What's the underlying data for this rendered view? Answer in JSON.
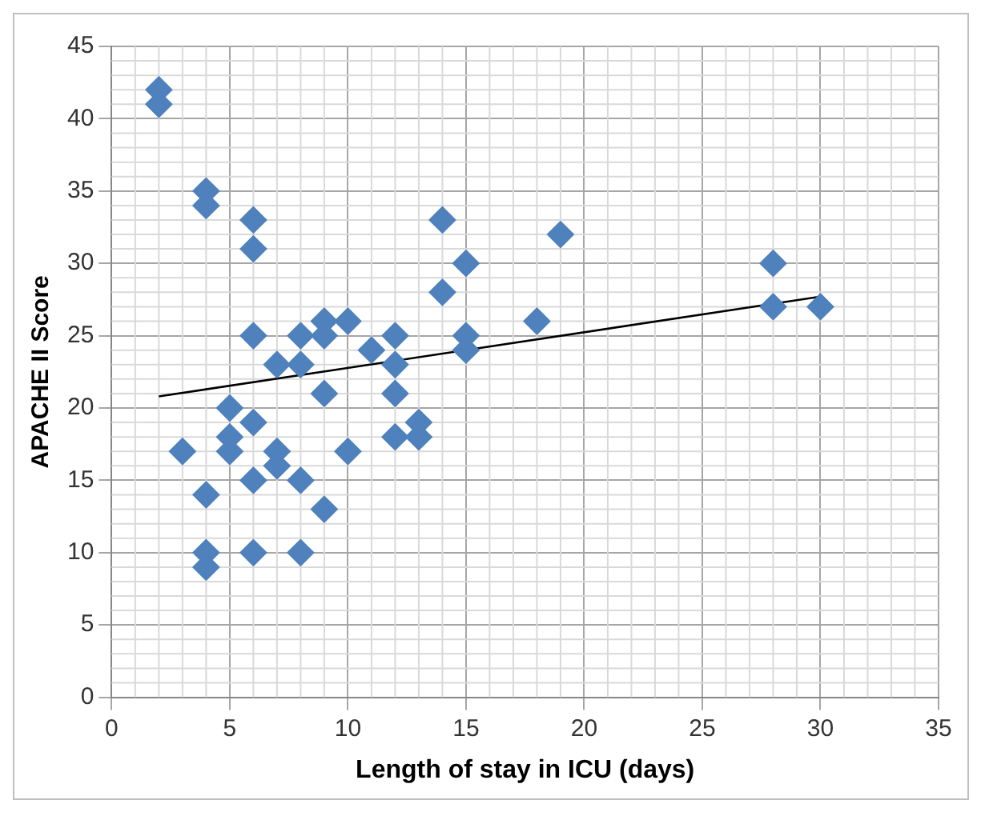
{
  "chart_data": {
    "type": "scatter",
    "xlabel": "Length of stay in ICU (days)",
    "ylabel": "APACHE II Score",
    "series": [
      {
        "color": "#4f81bd",
        "marker": "diamond",
        "x": [
          2,
          2,
          3,
          4,
          4,
          4,
          4,
          4,
          5,
          5,
          5,
          6,
          6,
          6,
          6,
          6,
          6,
          7,
          7,
          7,
          8,
          8,
          8,
          8,
          9,
          9,
          9,
          9,
          10,
          10,
          11,
          12,
          12,
          12,
          12,
          13,
          13,
          14,
          14,
          15,
          15,
          15,
          18,
          19,
          28,
          28,
          30
        ],
        "values": [
          42,
          41,
          17,
          35,
          34,
          14,
          10,
          9,
          20,
          18,
          17,
          33,
          31,
          25,
          19,
          15,
          10,
          23,
          17,
          16,
          25,
          23,
          15,
          10,
          26,
          25,
          21,
          13,
          26,
          17,
          24,
          25,
          23,
          21,
          18,
          19,
          18,
          33,
          28,
          30,
          25,
          24,
          26,
          32,
          30,
          27,
          27
        ]
      },
      {
        "type": "line",
        "color": "#000000",
        "marker": "none",
        "line_style": "solid",
        "x": [
          2,
          30
        ],
        "values": [
          20.8,
          27.7
        ]
      }
    ],
    "xlim": [
      0,
      35
    ],
    "xticks": [
      0,
      5,
      10,
      15,
      20,
      25,
      30,
      35
    ],
    "ylim": [
      0,
      45
    ],
    "yticks": [
      0,
      5,
      10,
      15,
      20,
      25,
      30,
      35,
      40,
      45
    ],
    "grid": true,
    "legend": false
  }
}
